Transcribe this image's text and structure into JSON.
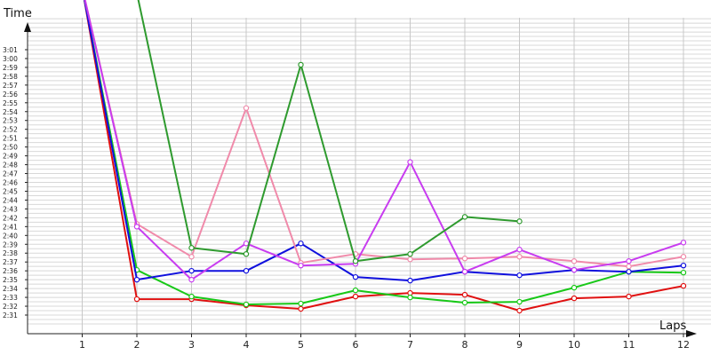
{
  "chart_data": {
    "type": "line",
    "xlabel": "Laps",
    "ylabel": "Time",
    "x_ticks": [
      1,
      2,
      3,
      4,
      5,
      6,
      7,
      8,
      9,
      10,
      11,
      12
    ],
    "y_ticks": [
      "2:31",
      "2:32",
      "2:33",
      "2:34",
      "2:35",
      "2:36",
      "2:37",
      "2:38",
      "2:39",
      "2:40",
      "2:41",
      "2:42",
      "2:43",
      "2:44",
      "2:45",
      "2:46",
      "2:47",
      "2:48",
      "2:49",
      "2:50",
      "2:51",
      "2:52",
      "2:53",
      "2:54",
      "2:55",
      "2:56",
      "2:57",
      "2:58",
      "2:59",
      "3:00",
      "3:01"
    ],
    "y_ticks_seconds": [
      151,
      152,
      153,
      154,
      155,
      156,
      157,
      158,
      159,
      160,
      161,
      162,
      163,
      164,
      165,
      166,
      167,
      168,
      169,
      170,
      171,
      172,
      173,
      174,
      175,
      176,
      177,
      178,
      179,
      180,
      181
    ],
    "xlim": [
      0,
      12
    ],
    "ylim_seconds": [
      149.3,
      186.5
    ],
    "grid": true,
    "series": [
      {
        "color": "#e01010",
        "points": [
          [
            1,
            188
          ],
          [
            2,
            152.8
          ],
          [
            3,
            152.8
          ],
          [
            4,
            152.1
          ],
          [
            5,
            151.7
          ],
          [
            6,
            153.1
          ],
          [
            7,
            153.5
          ],
          [
            8,
            153.3
          ],
          [
            9,
            151.5
          ],
          [
            10,
            152.9
          ],
          [
            11,
            153.1
          ],
          [
            12,
            154.3
          ]
        ]
      },
      {
        "color": "#18c818",
        "points": [
          [
            1,
            188
          ],
          [
            2,
            156.1
          ],
          [
            3,
            153.1
          ],
          [
            4,
            152.2
          ],
          [
            5,
            152.3
          ],
          [
            6,
            153.8
          ],
          [
            7,
            153.0
          ],
          [
            8,
            152.4
          ],
          [
            9,
            152.5
          ],
          [
            10,
            154.1
          ],
          [
            11,
            155.9
          ],
          [
            12,
            155.8
          ]
        ]
      },
      {
        "color": "#1010dd",
        "points": [
          [
            1,
            188
          ],
          [
            2,
            155.0
          ],
          [
            3,
            156.0
          ],
          [
            4,
            156.0
          ],
          [
            5,
            159.1
          ],
          [
            6,
            155.3
          ],
          [
            7,
            154.9
          ],
          [
            8,
            155.9
          ],
          [
            9,
            155.5
          ],
          [
            10,
            156.1
          ],
          [
            11,
            155.9
          ],
          [
            12,
            156.6
          ]
        ]
      },
      {
        "color": "#f08aaa",
        "points": [
          [
            1,
            188
          ],
          [
            2,
            161.3
          ],
          [
            3,
            157.6
          ],
          [
            4,
            174.4
          ],
          [
            5,
            156.9
          ],
          [
            6,
            157.9
          ],
          [
            7,
            157.3
          ],
          [
            8,
            157.4
          ],
          [
            9,
            157.6
          ],
          [
            10,
            157.1
          ],
          [
            11,
            156.5
          ],
          [
            12,
            157.6
          ]
        ]
      },
      {
        "color": "#c83cf0",
        "points": [
          [
            1,
            188
          ],
          [
            2,
            161.0
          ],
          [
            3,
            155.0
          ],
          [
            4,
            159.1
          ],
          [
            5,
            156.6
          ],
          [
            6,
            156.8
          ],
          [
            7,
            168.3
          ],
          [
            8,
            155.9
          ],
          [
            9,
            158.4
          ],
          [
            10,
            156.1
          ],
          [
            11,
            157.1
          ],
          [
            12,
            159.2
          ]
        ]
      },
      {
        "color": "#2e9a2e",
        "points": [
          [
            1.8,
            188
          ],
          [
            2,
            187.4
          ],
          [
            3,
            158.6
          ],
          [
            4,
            157.9
          ],
          [
            5,
            179.3
          ],
          [
            6,
            157.1
          ],
          [
            7,
            157.9
          ],
          [
            8,
            162.1
          ],
          [
            9,
            161.6
          ]
        ]
      }
    ]
  }
}
